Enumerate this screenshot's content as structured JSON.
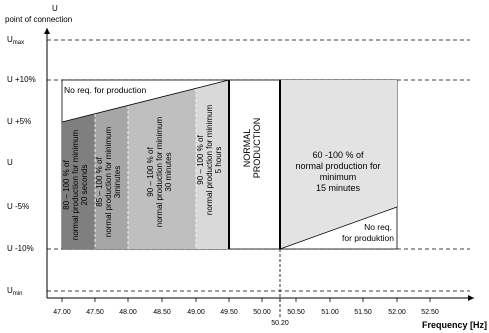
{
  "y_axis": {
    "title": [
      "U",
      "point of connection"
    ],
    "labels": [
      {
        "main": "U",
        "sub": "max"
      },
      "U +10%",
      "U +5%",
      "U",
      "U -5%",
      "U -10%",
      {
        "main": "U",
        "sub": "min"
      }
    ]
  },
  "x_axis": {
    "title": "Frequency [Hz]",
    "ticks": [
      "47.00",
      "47.50",
      "48.00",
      "48.50",
      "49.00",
      "49.50",
      "50.00",
      "50.20",
      "50.50",
      "51.00",
      "51.50",
      "52.00",
      "52.50"
    ]
  },
  "regions": [
    {
      "lines": [
        "80 – 100 % of",
        "normal production for minimum",
        "20 seconds"
      ]
    },
    {
      "lines": [
        "85 – 100 % of",
        "normal production for minimum",
        "3minutes"
      ]
    },
    {
      "lines": [
        "90 – 100 % of",
        "normal production for minimum",
        "30 minutes"
      ]
    },
    {
      "lines": [
        "90 – 100 % of",
        "normal production for minimum",
        "5 hours"
      ]
    },
    {
      "lines": [
        "NORMAL",
        "PRODUCTION"
      ]
    },
    {
      "lines": [
        "60 -100 % of",
        "normal production for",
        "minimum",
        "15 minutes"
      ]
    },
    {
      "lines": [
        "No req. for production"
      ]
    },
    {
      "lines": [
        "No req.",
        "for produktion"
      ]
    }
  ]
}
